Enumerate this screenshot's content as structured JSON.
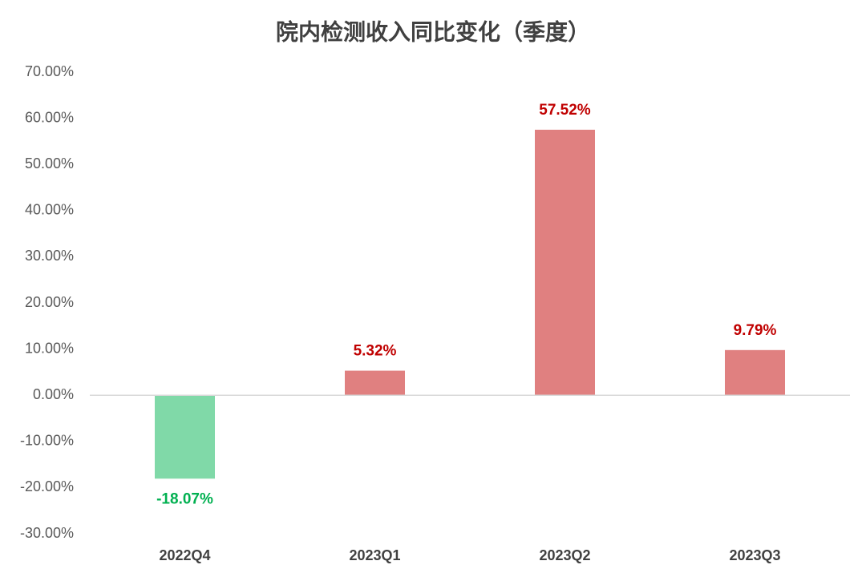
{
  "chart_data": {
    "type": "bar",
    "title": "院内检测收入同比变化（季度）",
    "categories": [
      "2022Q4",
      "2023Q1",
      "2023Q2",
      "2023Q3"
    ],
    "values": [
      -18.07,
      5.32,
      57.52,
      9.79
    ],
    "value_labels": [
      "-18.07%",
      "5.32%",
      "57.52%",
      "9.79%"
    ],
    "positive_color": "#e08080",
    "negative_color": "#80d9a8",
    "positive_label_color": "#c00000",
    "negative_label_color": "#00b050",
    "ylim": [
      -30,
      70
    ],
    "yticks": [
      {
        "value": -30,
        "label": "-30.00%"
      },
      {
        "value": -20,
        "label": "-20.00%"
      },
      {
        "value": -10,
        "label": "-10.00%"
      },
      {
        "value": 0,
        "label": "0.00%"
      },
      {
        "value": 10,
        "label": "10.00%"
      },
      {
        "value": 20,
        "label": "20.00%"
      },
      {
        "value": 30,
        "label": "30.00%"
      },
      {
        "value": 40,
        "label": "40.00%"
      },
      {
        "value": 50,
        "label": "50.00%"
      },
      {
        "value": 60,
        "label": "60.00%"
      },
      {
        "value": 70,
        "label": "70.00%"
      }
    ],
    "grid": false
  }
}
